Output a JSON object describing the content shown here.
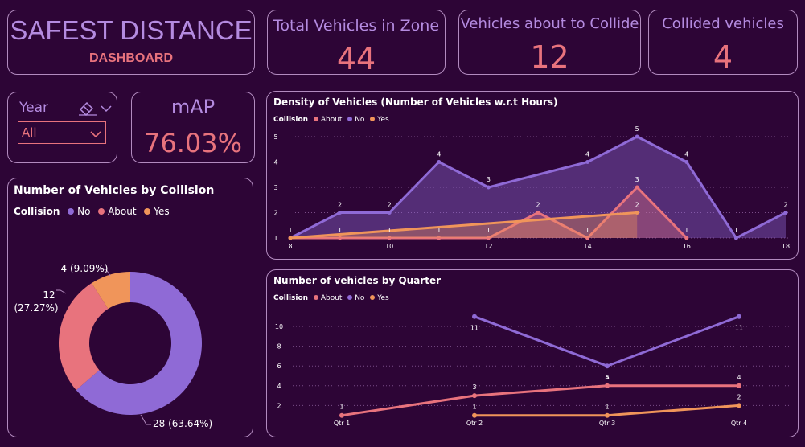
{
  "header": {
    "title": "SAFEST DISTANCE",
    "subtitle": "DASHBOARD"
  },
  "kpis": {
    "total": {
      "label": "Total Vehicles in Zone",
      "value": "44"
    },
    "about": {
      "label": "Vehicles about to Collide",
      "value": "12"
    },
    "collided": {
      "label": "Collided vehicles",
      "value": "4"
    },
    "map": {
      "label": "mAP",
      "value": "76.03%"
    }
  },
  "filter": {
    "label": "Year",
    "selected": "All"
  },
  "legend": {
    "title": "Collision",
    "no": "No",
    "about": "About",
    "yes": "Yes"
  },
  "colors": {
    "no": "#8f6ad6",
    "about": "#e8737d",
    "yes": "#f0955a",
    "accent": "#b48be0",
    "value": "#e8737d"
  },
  "chart_data": [
    {
      "type": "pie",
      "title": "Number of Vehicles by Collision",
      "legend_title": "Collision",
      "categories": [
        "No",
        "About",
        "Yes"
      ],
      "values": [
        28,
        12,
        4
      ],
      "labels": [
        "28 (63.64%)",
        "12 (27.27%)",
        "4 (9.09%)"
      ]
    },
    {
      "type": "area",
      "title": "Density of Vehicles (Number of Vehicles w.r.t Hours)",
      "legend_title": "Collision",
      "x_ticks": [
        8,
        10,
        12,
        14,
        16,
        18
      ],
      "y_ticks": [
        1,
        2,
        3,
        4,
        5
      ],
      "xlim": [
        8,
        18
      ],
      "ylim": [
        1,
        5
      ],
      "series": [
        {
          "name": "No",
          "x": [
            8,
            9,
            10,
            11,
            12,
            14,
            15,
            16,
            17,
            18
          ],
          "values": [
            1,
            2,
            2,
            4,
            3,
            4,
            5,
            4,
            1,
            2
          ]
        },
        {
          "name": "About",
          "x": [
            8,
            9,
            10,
            11,
            12,
            13,
            14,
            15,
            16
          ],
          "values": [
            1,
            1,
            1,
            1,
            1,
            2,
            1,
            3,
            1
          ]
        },
        {
          "name": "Yes",
          "x": [
            8,
            15
          ],
          "values": [
            1,
            2
          ]
        }
      ],
      "point_labels": [
        {
          "x": 8,
          "y": 1,
          "text": "1"
        },
        {
          "x": 9,
          "y": 2,
          "text": "2"
        },
        {
          "x": 10,
          "y": 2,
          "text": "2"
        },
        {
          "x": 11,
          "y": 4,
          "text": "4"
        },
        {
          "x": 12,
          "y": 3,
          "text": "3"
        },
        {
          "x": 14,
          "y": 4,
          "text": "4"
        },
        {
          "x": 15,
          "y": 5,
          "text": "5"
        },
        {
          "x": 16,
          "y": 4,
          "text": "4"
        },
        {
          "x": 17,
          "y": 1,
          "text": "1"
        },
        {
          "x": 18,
          "y": 2,
          "text": "2"
        },
        {
          "x": 9,
          "y": 1,
          "text": "1"
        },
        {
          "x": 10,
          "y": 1,
          "text": "1"
        },
        {
          "x": 11,
          "y": 1,
          "text": "1"
        },
        {
          "x": 12,
          "y": 1,
          "text": "1"
        },
        {
          "x": 13,
          "y": 2,
          "text": "2"
        },
        {
          "x": 14,
          "y": 1,
          "text": "1"
        },
        {
          "x": 15,
          "y": 3,
          "text": "3"
        },
        {
          "x": 15,
          "y": 2,
          "text": "2"
        },
        {
          "x": 16,
          "y": 1,
          "text": "1"
        }
      ]
    },
    {
      "type": "line",
      "title": "Number of vehicles by Quarter",
      "legend_title": "Collision",
      "categories": [
        "Qtr 1",
        "Qtr 2",
        "Qtr 3",
        "Qtr 4"
      ],
      "y_ticks": [
        2,
        4,
        6,
        8,
        10
      ],
      "ylim": [
        0,
        12
      ],
      "series": [
        {
          "name": "No",
          "values": [
            null,
            11,
            6,
            11
          ]
        },
        {
          "name": "About",
          "values": [
            1,
            3,
            4,
            4
          ]
        },
        {
          "name": "Yes",
          "values": [
            null,
            1,
            1,
            2
          ]
        }
      ]
    }
  ]
}
